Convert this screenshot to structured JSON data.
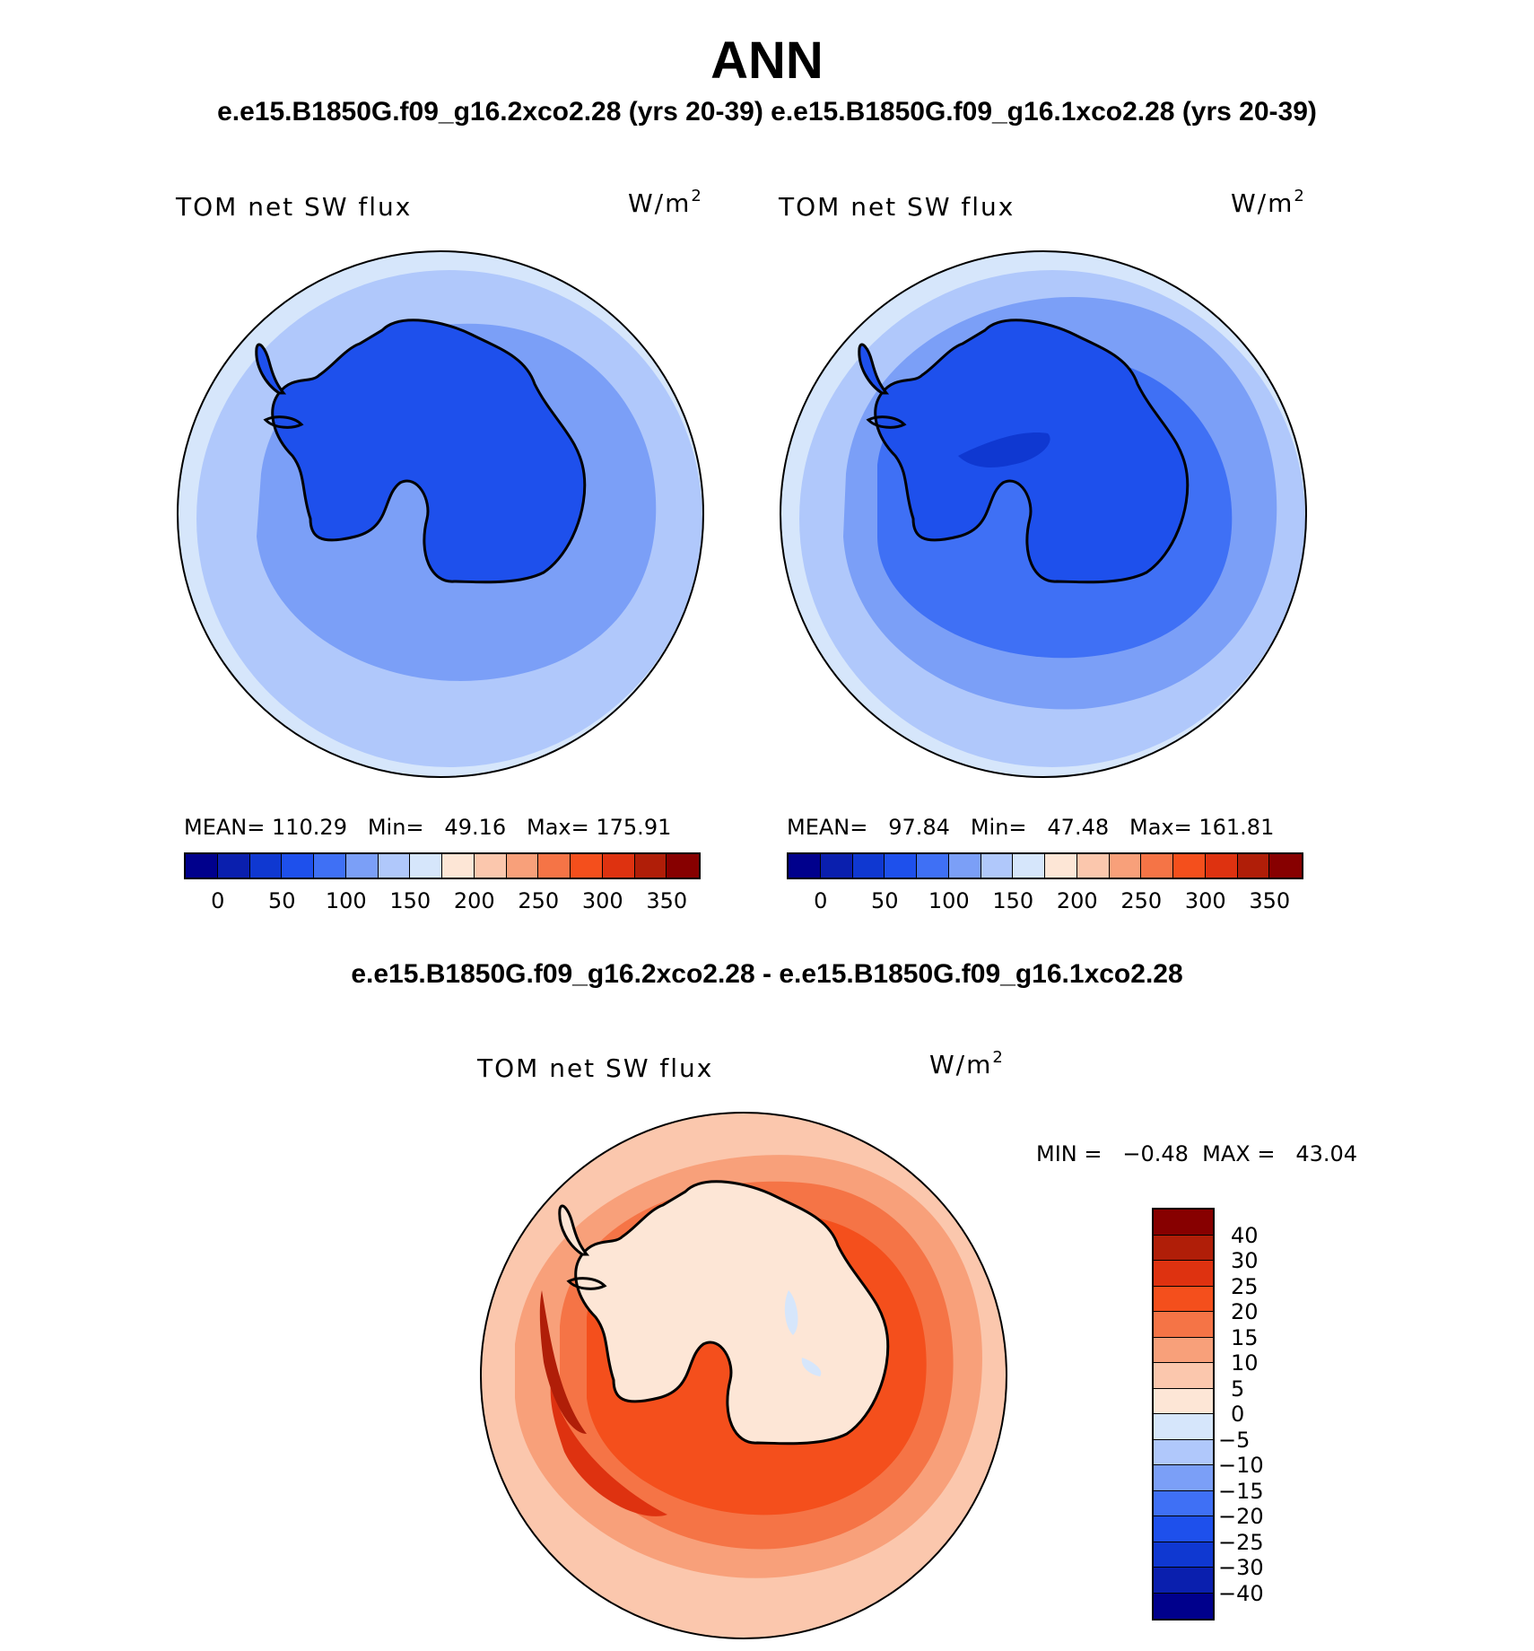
{
  "page": {
    "title": "ANN",
    "subtitle": "e.e15.B1850G.f09_g16.2xco2.28 (yrs 20-39) e.e15.B1850G.f09_g16.1xco2.28 (yrs 20-39)",
    "diff_title": "e.e15.B1850G.f09_g16.2xco2.28 - e.e15.B1850G.f09_g16.1xco2.28"
  },
  "panels": [
    {
      "variable": "TOM net SW flux",
      "units_base": "W/m",
      "units_exp": "2",
      "stats": "MEAN= 110.29   Min=   49.16   Max= 175.91"
    },
    {
      "variable": "TOM net SW flux",
      "units_base": "W/m",
      "units_exp": "2",
      "stats": "MEAN=   97.84   Min=   47.48   Max= 161.81"
    }
  ],
  "diff_panel": {
    "variable": "TOM net SW flux",
    "units_base": "W/m",
    "units_exp": "2",
    "stats": "MIN =   −0.48  MAX =   43.04"
  },
  "colorbar_top": {
    "colors": [
      "#00008c",
      "#0a1fae",
      "#0f38d1",
      "#1e50ec",
      "#3f70f5",
      "#7b9ff7",
      "#b0c8fb",
      "#d6e6fb",
      "#fde6d6",
      "#fbc7ad",
      "#f8a07a",
      "#f57446",
      "#f44f1c",
      "#de3210",
      "#b01e08",
      "#870000"
    ],
    "labels": [
      "0",
      "50",
      "100",
      "150",
      "200",
      "250",
      "300",
      "350"
    ]
  },
  "colorbar_diff": {
    "colors": [
      "#870000",
      "#b01e08",
      "#de3210",
      "#f44f1c",
      "#f57446",
      "#f8a07a",
      "#fbc7ad",
      "#fde6d6",
      "#d6e6fb",
      "#b0c8fb",
      "#7b9ff7",
      "#3f70f5",
      "#1e50ec",
      "#0f38d1",
      "#0a1fae",
      "#00008c"
    ],
    "labels": [
      "40",
      "30",
      "25",
      "20",
      "15",
      "10",
      "5",
      "0",
      "−5",
      "−10",
      "−15",
      "−20",
      "−25",
      "−30",
      "−40"
    ]
  }
}
